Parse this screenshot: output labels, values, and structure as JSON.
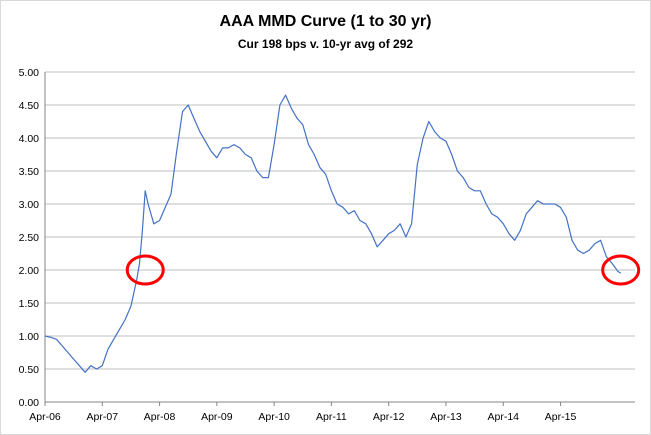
{
  "chart_data": {
    "type": "line",
    "title": "AAA MMD Curve (1 to 30 yr)",
    "subtitle": "Cur 198 bps v. 10-yr avg of 292",
    "xlabel": "",
    "ylabel": "",
    "ylim": [
      0,
      5
    ],
    "yticks": [
      "0.00",
      "0.50",
      "1.00",
      "1.50",
      "2.00",
      "2.50",
      "3.00",
      "3.50",
      "4.00",
      "4.50",
      "5.00"
    ],
    "xticks": [
      "Apr-06",
      "Apr-07",
      "Apr-08",
      "Apr-09",
      "Apr-10",
      "Apr-11",
      "Apr-12",
      "Apr-13",
      "Apr-14",
      "Apr-15"
    ],
    "grid": "horizontal",
    "line_color": "#4472c4",
    "highlight_color": "#ff0000",
    "series": [
      {
        "x": [
          0,
          0.1,
          0.2,
          0.3,
          0.4,
          0.5,
          0.6,
          0.7,
          0.8,
          0.9,
          1.0,
          1.1,
          1.2,
          1.3,
          1.4,
          1.5,
          1.6,
          1.65,
          1.7,
          1.75,
          1.8,
          1.9,
          2.0,
          2.1,
          2.2,
          2.3,
          2.4,
          2.5,
          2.6,
          2.7,
          2.8,
          2.9,
          3.0,
          3.1,
          3.2,
          3.3,
          3.4,
          3.5,
          3.6,
          3.7,
          3.8,
          3.9,
          4.0,
          4.1,
          4.2,
          4.3,
          4.4,
          4.5,
          4.6,
          4.7,
          4.8,
          4.9,
          5.0,
          5.1,
          5.2,
          5.3,
          5.4,
          5.5,
          5.6,
          5.7,
          5.8,
          5.9,
          6.0,
          6.1,
          6.2,
          6.3,
          6.4,
          6.5,
          6.6,
          6.7,
          6.8,
          6.9,
          7.0,
          7.1,
          7.2,
          7.3,
          7.4,
          7.5,
          7.6,
          7.7,
          7.8,
          7.9,
          8.0,
          8.1,
          8.2,
          8.3,
          8.4,
          8.5,
          8.6,
          8.7,
          8.8,
          8.9,
          9.0,
          9.1,
          9.2,
          9.3,
          9.4,
          9.5,
          9.6,
          9.7,
          9.8,
          9.9,
          10.0,
          10.05
        ],
        "values": [
          1.0,
          0.98,
          0.95,
          0.85,
          0.75,
          0.65,
          0.55,
          0.45,
          0.55,
          0.5,
          0.55,
          0.8,
          0.95,
          1.1,
          1.25,
          1.45,
          1.85,
          2.1,
          2.6,
          3.2,
          3.0,
          2.7,
          2.75,
          2.95,
          3.15,
          3.8,
          4.4,
          4.5,
          4.3,
          4.1,
          3.95,
          3.8,
          3.7,
          3.85,
          3.85,
          3.9,
          3.85,
          3.75,
          3.7,
          3.5,
          3.4,
          3.4,
          3.9,
          4.5,
          4.65,
          4.45,
          4.3,
          4.2,
          3.9,
          3.75,
          3.55,
          3.45,
          3.2,
          3.0,
          2.95,
          2.85,
          2.9,
          2.75,
          2.7,
          2.55,
          2.35,
          2.45,
          2.55,
          2.6,
          2.7,
          2.5,
          2.7,
          3.6,
          4.0,
          4.25,
          4.1,
          4.0,
          3.95,
          3.75,
          3.5,
          3.4,
          3.25,
          3.2,
          3.2,
          3.0,
          2.85,
          2.8,
          2.7,
          2.55,
          2.45,
          2.6,
          2.85,
          2.95,
          3.05,
          3.0,
          3.0,
          3.0,
          2.95,
          2.8,
          2.45,
          2.3,
          2.25,
          2.3,
          2.4,
          2.45,
          2.2,
          2.1,
          1.98,
          1.95
        ]
      }
    ],
    "annotations": [
      {
        "type": "circle",
        "x": 1.75,
        "y": 2.0
      },
      {
        "type": "circle",
        "x": 10.05,
        "y": 2.0
      }
    ]
  }
}
